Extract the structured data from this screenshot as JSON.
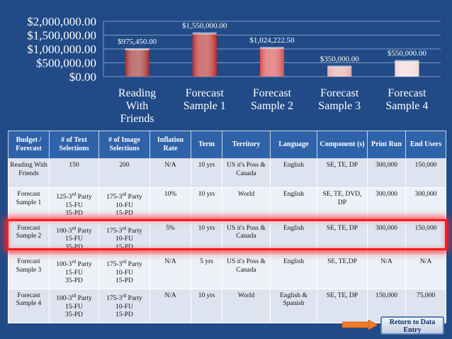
{
  "chart_data": {
    "type": "bar",
    "categories": [
      "Reading With Friends",
      "Forecast Sample 1",
      "Forecast Sample 2",
      "Forecast Sample 3",
      "Forecast Sample 4"
    ],
    "category_lines": [
      [
        "Reading",
        "With",
        "Friends"
      ],
      [
        "Forecast",
        "Sample 1"
      ],
      [
        "Forecast",
        "Sample 2"
      ],
      [
        "Forecast",
        "Sample 3"
      ],
      [
        "Forecast",
        "Sample 4"
      ]
    ],
    "values": [
      975450,
      1550000,
      1024222.5,
      350000,
      550000
    ],
    "data_labels": [
      "$975,450.00",
      "$1,550,000.00",
      "$1,024,222.50",
      "$350,000.00",
      "$550,000.00"
    ],
    "y_ticks": [
      0,
      500000,
      1000000,
      1500000,
      2000000
    ],
    "y_tick_labels": [
      "$0.00",
      "$500,000.00",
      "$1,000,000.00",
      "$1,500,000.00",
      "$2,000,000.00"
    ],
    "ylim": [
      0,
      2000000
    ],
    "bar_colors": [
      "#9e2b2b",
      "#b82a2a",
      "#d64d4d",
      "#e6a7a7",
      "#f3d6d6"
    ],
    "title": "",
    "xlabel": "",
    "ylabel": ""
  },
  "table": {
    "headers": [
      "Budget / Forecast",
      "# of Text Selections",
      "# of Image Selections",
      "Inflation Rate",
      "Term",
      "Territory",
      "Language",
      "Component (s)",
      "Print Run",
      "End Users"
    ],
    "rows": [
      [
        "Reading With Friends",
        "150",
        "200",
        "N/A",
        "10 yrs",
        "US it's Poss & Canada",
        "English",
        "SE, TE, DP",
        "300,000",
        "150,000"
      ],
      [
        "Forecast Sample 1",
        "125-3rd Party\n15-FU\n35-PD",
        "175-3rd Party\n10-FU\n15-PD",
        "10%",
        "10 yrs",
        "World",
        "English",
        "SE, TE, DVD, DP",
        "300,000",
        "300,000"
      ],
      [
        "Forecast Sample 2",
        "100-3rd Party\n15-FU\n35-PD",
        "175-3rd Party\n10-FU\n15-PD",
        "5%",
        "10 yrs",
        "US it's Poss & Canada",
        "English",
        "SE, TE, DP",
        "300,000",
        "150,000"
      ],
      [
        "Forecast Sample 3",
        "100-3rd Party\n15-FU\n35-PD",
        "175-3rd Party\n10-FU\n15-PD",
        "N/A",
        "5 yrs",
        "US it's Poss & Canada",
        "English",
        "SE, TE,DP",
        "N/A",
        "N/A"
      ],
      [
        "Forecast Sample 4",
        "100-3rd Party\n15-FU\n35-PD",
        "175-3rd Party\n10-FU\n15-PD",
        "N/A",
        "10 yrs",
        "World",
        "English & Spanish",
        "SE, TE, DP",
        "150,000",
        "75,000"
      ]
    ],
    "highlighted_row": 2
  },
  "nav": {
    "return_button": "Return to Data Entry"
  },
  "colors": {
    "background": "#214a86",
    "header_fill": "#2f63a9",
    "row_fill": "#dde3ef",
    "highlight": "#ff1a1a",
    "arrow": "#f07c2a"
  }
}
